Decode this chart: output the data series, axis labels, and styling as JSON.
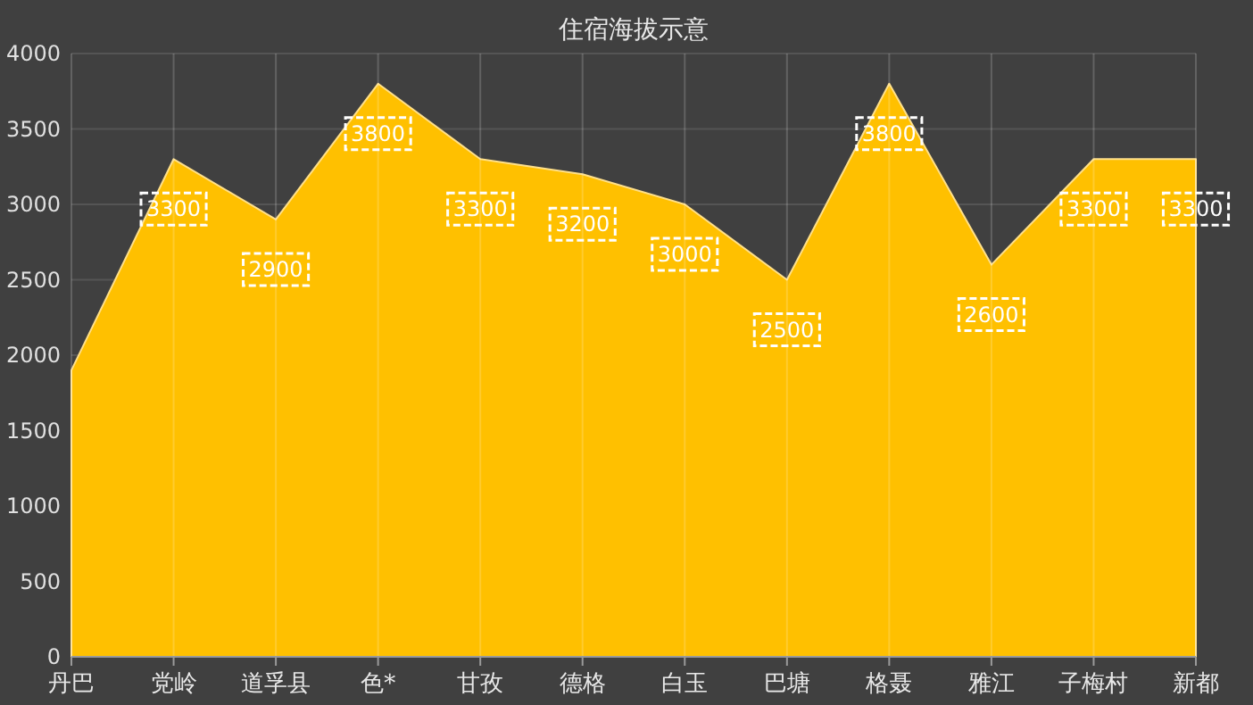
{
  "chart_data": {
    "type": "area",
    "title": "住宿海拔示意",
    "categories": [
      "丹巴",
      "党岭",
      "道孚县",
      "色*",
      "甘孜",
      "德格",
      "白玉",
      "巴塘",
      "格聂",
      "雅江",
      "子梅村",
      "新都"
    ],
    "values": [
      1900,
      3300,
      2900,
      3800,
      3300,
      3200,
      3000,
      2500,
      3800,
      2600,
      3300,
      3300
    ],
    "value_labels": [
      null,
      "3300",
      "2900",
      "3800",
      "3300",
      "3200",
      "3000",
      "2500",
      "3800",
      "2600",
      "3300",
      "3300"
    ],
    "color": "#ffc000",
    "ylim": [
      0,
      4000
    ],
    "yticks": [
      0,
      500,
      1000,
      1500,
      2000,
      2500,
      3000,
      3500,
      4000
    ],
    "grid": true
  }
}
